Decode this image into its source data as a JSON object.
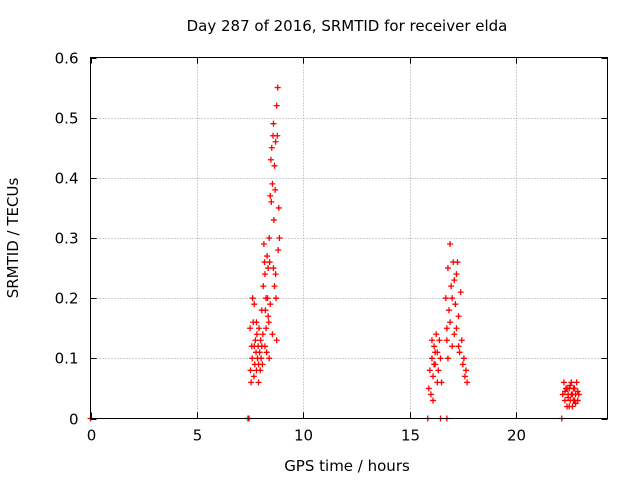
{
  "chart_data": {
    "type": "scatter",
    "title": "Day 287 of 2016, SRMTID for receiver elda",
    "xlabel": "GPS time / hours",
    "ylabel": "SRMTID / TECUs",
    "xlim": [
      0,
      24.3
    ],
    "ylim": [
      0,
      0.6
    ],
    "x_ticks": [
      0,
      5,
      10,
      15,
      20
    ],
    "x_tick_labels": [
      "0",
      "5",
      "10",
      "15",
      "20"
    ],
    "y_ticks": [
      0,
      0.1,
      0.2,
      0.3,
      0.4,
      0.5,
      0.6
    ],
    "y_tick_labels": [
      "0",
      "0.1",
      "0.2",
      "0.3",
      "0.4",
      "0.5",
      "0.6"
    ],
    "grid": true,
    "marker": "+",
    "color": "#ff0000",
    "series": [
      {
        "name": "SRMTID",
        "points": [
          [
            0.0,
            0.0
          ],
          [
            7.4,
            0.0
          ],
          [
            7.45,
            0.0
          ],
          [
            15.85,
            0.0
          ],
          [
            16.45,
            0.0
          ],
          [
            16.75,
            0.0
          ],
          [
            22.15,
            0.0
          ],
          [
            7.5,
            0.15
          ],
          [
            7.52,
            0.08
          ],
          [
            7.55,
            0.06
          ],
          [
            7.58,
            0.12
          ],
          [
            7.6,
            0.1
          ],
          [
            7.62,
            0.2
          ],
          [
            7.65,
            0.16
          ],
          [
            7.68,
            0.07
          ],
          [
            7.7,
            0.19
          ],
          [
            7.72,
            0.09
          ],
          [
            7.75,
            0.13
          ],
          [
            7.78,
            0.11
          ],
          [
            7.8,
            0.08
          ],
          [
            7.82,
            0.14
          ],
          [
            7.85,
            0.1
          ],
          [
            7.88,
            0.12
          ],
          [
            7.9,
            0.09
          ],
          [
            7.92,
            0.15
          ],
          [
            7.95,
            0.11
          ],
          [
            7.98,
            0.08
          ],
          [
            8.0,
            0.13
          ],
          [
            8.02,
            0.1
          ],
          [
            8.05,
            0.12
          ],
          [
            8.08,
            0.09
          ],
          [
            8.1,
            0.14
          ],
          [
            8.12,
            0.22
          ],
          [
            8.15,
            0.29
          ],
          [
            8.18,
            0.26
          ],
          [
            8.2,
            0.24
          ],
          [
            8.22,
            0.18
          ],
          [
            8.25,
            0.15
          ],
          [
            8.28,
            0.11
          ],
          [
            8.3,
            0.27
          ],
          [
            8.32,
            0.2
          ],
          [
            8.35,
            0.25
          ],
          [
            8.38,
            0.16
          ],
          [
            8.4,
            0.3
          ],
          [
            8.42,
            0.26
          ],
          [
            8.45,
            0.37
          ],
          [
            8.48,
            0.43
          ],
          [
            8.5,
            0.36
          ],
          [
            8.52,
            0.45
          ],
          [
            8.55,
            0.39
          ],
          [
            8.58,
            0.47
          ],
          [
            8.6,
            0.49
          ],
          [
            8.62,
            0.33
          ],
          [
            8.65,
            0.42
          ],
          [
            8.68,
            0.38
          ],
          [
            8.7,
            0.46
          ],
          [
            8.72,
            0.2
          ],
          [
            8.75,
            0.52
          ],
          [
            8.78,
            0.47
          ],
          [
            8.8,
            0.55
          ],
          [
            8.82,
            0.28
          ],
          [
            8.85,
            0.35
          ],
          [
            8.88,
            0.3
          ],
          [
            8.2,
            0.12
          ],
          [
            8.25,
            0.2
          ],
          [
            8.35,
            0.17
          ],
          [
            8.45,
            0.19
          ],
          [
            8.55,
            0.14
          ],
          [
            8.65,
            0.22
          ],
          [
            8.75,
            0.13
          ],
          [
            7.7,
            0.12
          ],
          [
            7.8,
            0.16
          ],
          [
            7.9,
            0.06
          ],
          [
            8.05,
            0.18
          ],
          [
            8.6,
            0.25
          ],
          [
            8.7,
            0.24
          ],
          [
            8.4,
            0.1
          ],
          [
            15.9,
            0.05
          ],
          [
            15.95,
            0.08
          ],
          [
            16.0,
            0.04
          ],
          [
            16.05,
            0.1
          ],
          [
            16.1,
            0.07
          ],
          [
            16.15,
            0.12
          ],
          [
            16.2,
            0.09
          ],
          [
            16.25,
            0.14
          ],
          [
            16.3,
            0.11
          ],
          [
            16.35,
            0.08
          ],
          [
            16.4,
            0.13
          ],
          [
            16.45,
            0.1
          ],
          [
            16.5,
            0.06
          ],
          [
            16.1,
            0.03
          ],
          [
            16.2,
            0.11
          ],
          [
            16.3,
            0.06
          ],
          [
            16.05,
            0.13
          ],
          [
            16.15,
            0.09
          ],
          [
            16.7,
            0.2
          ],
          [
            16.75,
            0.15
          ],
          [
            16.8,
            0.25
          ],
          [
            16.85,
            0.18
          ],
          [
            16.9,
            0.29
          ],
          [
            16.95,
            0.22
          ],
          [
            17.0,
            0.12
          ],
          [
            17.05,
            0.26
          ],
          [
            17.1,
            0.14
          ],
          [
            17.15,
            0.19
          ],
          [
            17.2,
            0.24
          ],
          [
            17.25,
            0.26
          ],
          [
            17.3,
            0.17
          ],
          [
            17.35,
            0.11
          ],
          [
            17.4,
            0.21
          ],
          [
            17.45,
            0.13
          ],
          [
            17.5,
            0.09
          ],
          [
            17.55,
            0.1
          ],
          [
            17.6,
            0.07
          ],
          [
            17.65,
            0.08
          ],
          [
            17.7,
            0.06
          ],
          [
            16.8,
            0.1
          ],
          [
            16.9,
            0.16
          ],
          [
            17.0,
            0.2
          ],
          [
            17.1,
            0.23
          ],
          [
            17.2,
            0.15
          ],
          [
            17.3,
            0.12
          ],
          [
            16.75,
            0.13
          ],
          [
            22.2,
            0.04
          ],
          [
            22.25,
            0.06
          ],
          [
            22.3,
            0.03
          ],
          [
            22.35,
            0.05
          ],
          [
            22.4,
            0.02
          ],
          [
            22.45,
            0.04
          ],
          [
            22.5,
            0.05
          ],
          [
            22.55,
            0.03
          ],
          [
            22.6,
            0.04
          ],
          [
            22.65,
            0.02
          ],
          [
            22.7,
            0.05
          ],
          [
            22.75,
            0.03
          ],
          [
            22.8,
            0.04
          ],
          [
            22.85,
            0.06
          ],
          [
            22.9,
            0.03
          ],
          [
            22.95,
            0.04
          ],
          [
            22.4,
            0.05
          ],
          [
            22.5,
            0.02
          ],
          [
            22.6,
            0.06
          ],
          [
            22.7,
            0.03
          ],
          [
            22.3,
            0.045
          ],
          [
            22.8,
            0.025
          ],
          [
            22.55,
            0.055
          ],
          [
            22.9,
            0.045
          ],
          [
            22.45,
            0.035
          ],
          [
            22.65,
            0.04
          ],
          [
            22.75,
            0.05
          ]
        ]
      }
    ]
  }
}
